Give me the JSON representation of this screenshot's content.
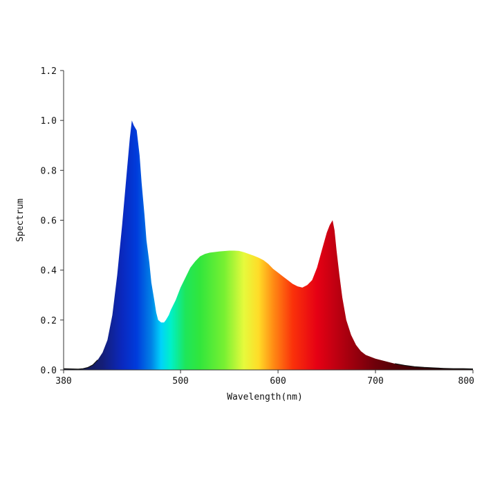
{
  "chart_data": {
    "type": "area",
    "title": "",
    "xlabel": "Wavelength(nm)",
    "ylabel": "Spectrum",
    "xlim": [
      380,
      800
    ],
    "ylim": [
      0,
      1.2
    ],
    "x_ticks": [
      "380",
      "500",
      "600",
      "700",
      "800"
    ],
    "y_ticks": [
      "0.0",
      "0.2",
      "0.4",
      "0.6",
      "0.8",
      "1.0",
      "1.2"
    ],
    "grid": false,
    "legend": "none",
    "fill": "visible-spectrum gradient",
    "x": [
      380,
      395,
      400,
      405,
      410,
      415,
      420,
      425,
      430,
      435,
      440,
      445,
      448,
      450,
      452,
      455,
      458,
      460,
      463,
      465,
      468,
      470,
      473,
      475,
      477,
      480,
      483,
      485,
      488,
      490,
      495,
      500,
      505,
      510,
      515,
      520,
      525,
      530,
      540,
      550,
      555,
      560,
      565,
      570,
      575,
      580,
      585,
      590,
      595,
      600,
      605,
      610,
      615,
      620,
      625,
      630,
      635,
      640,
      645,
      650,
      653,
      656,
      658,
      660,
      663,
      666,
      670,
      675,
      680,
      685,
      690,
      700,
      710,
      720,
      730,
      740,
      750,
      760,
      770,
      780,
      790,
      800
    ],
    "values": [
      0.005,
      0.003,
      0.005,
      0.01,
      0.02,
      0.04,
      0.07,
      0.12,
      0.22,
      0.38,
      0.58,
      0.8,
      0.93,
      1.0,
      0.98,
      0.96,
      0.86,
      0.75,
      0.62,
      0.52,
      0.43,
      0.35,
      0.28,
      0.23,
      0.2,
      0.19,
      0.19,
      0.2,
      0.22,
      0.24,
      0.28,
      0.33,
      0.37,
      0.41,
      0.435,
      0.455,
      0.465,
      0.47,
      0.475,
      0.478,
      0.478,
      0.477,
      0.472,
      0.465,
      0.458,
      0.45,
      0.44,
      0.425,
      0.405,
      0.39,
      0.375,
      0.36,
      0.345,
      0.335,
      0.33,
      0.34,
      0.36,
      0.41,
      0.48,
      0.55,
      0.58,
      0.6,
      0.56,
      0.48,
      0.38,
      0.29,
      0.2,
      0.14,
      0.1,
      0.075,
      0.06,
      0.045,
      0.035,
      0.025,
      0.018,
      0.013,
      0.01,
      0.008,
      0.006,
      0.005,
      0.005,
      0.004
    ]
  }
}
